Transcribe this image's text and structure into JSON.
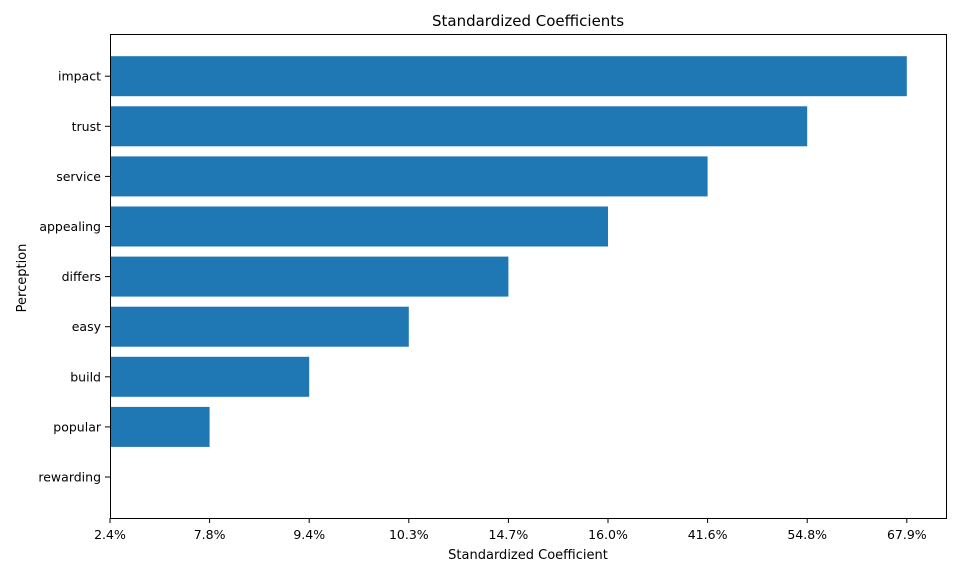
{
  "chart_data": {
    "type": "bar",
    "orientation": "horizontal",
    "title": "Standardized Coefficients",
    "xlabel": "Standardized Coefficient",
    "ylabel": "Perception",
    "categories": [
      "rewarding",
      "popular",
      "build",
      "easy",
      "differs",
      "appealing",
      "service",
      "trust",
      "impact"
    ],
    "values": [
      2.4,
      7.8,
      9.4,
      10.3,
      14.7,
      16.0,
      41.6,
      54.8,
      67.9
    ],
    "x_tick_labels": [
      "2.4%",
      "7.8%",
      "9.4%",
      "10.3%",
      "14.7%",
      "16.0%",
      "41.6%",
      "54.8%",
      "67.9%"
    ],
    "x_axis_scale": "ordinal (ticks at equal spacing, one per bar value)",
    "bar_color": "#1f77b4",
    "grid": false,
    "legend": "none"
  }
}
